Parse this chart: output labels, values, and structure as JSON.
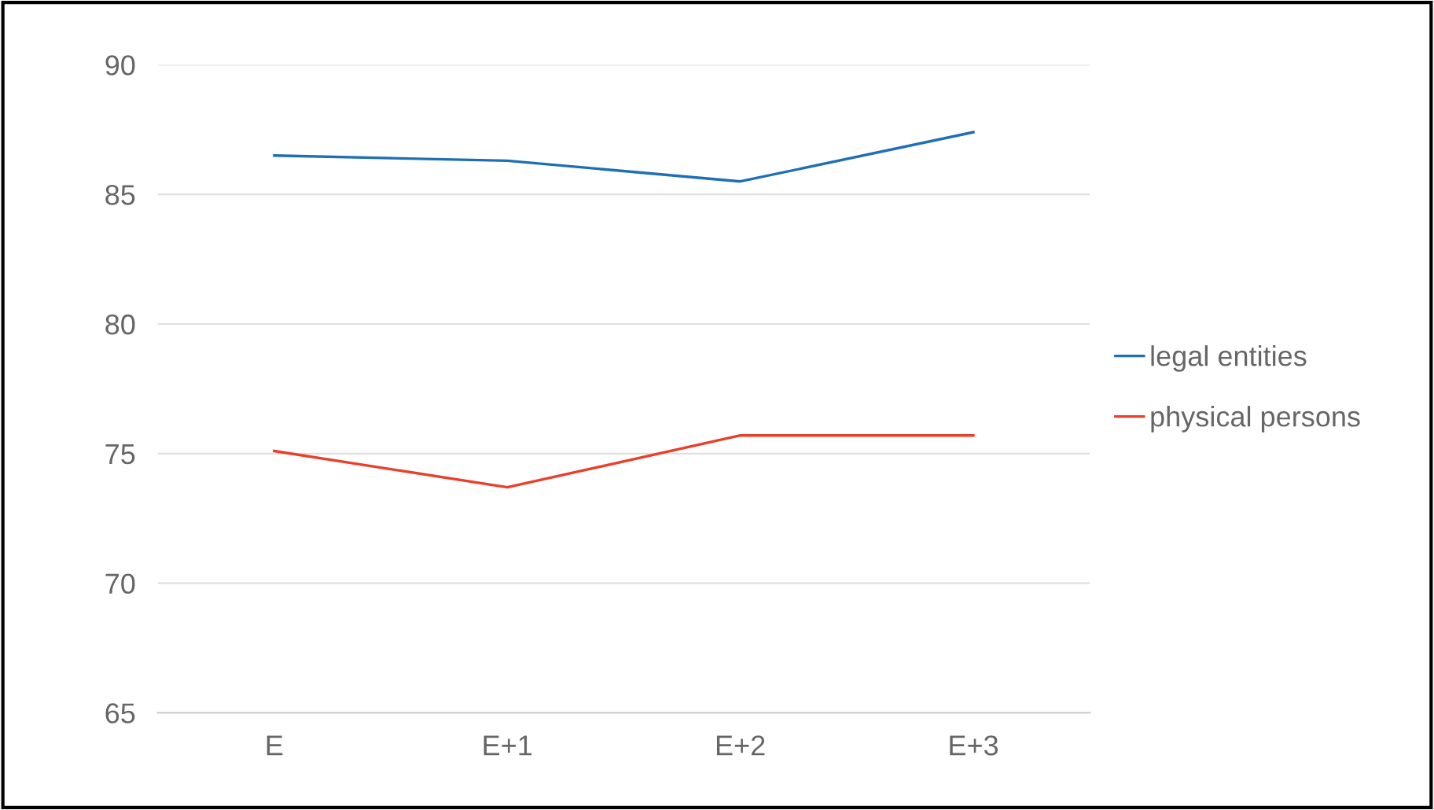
{
  "chart_data": {
    "type": "line",
    "categories": [
      "E",
      "E+1",
      "E+2",
      "E+3"
    ],
    "series": [
      {
        "name": "legal entities",
        "color": "#1f6fb5",
        "values": [
          86.5,
          86.3,
          85.5,
          87.4
        ]
      },
      {
        "name": "physical persons",
        "color": "#e8402a",
        "values": [
          75.1,
          73.7,
          75.7,
          75.7
        ]
      }
    ],
    "ylim": [
      65,
      90
    ],
    "yticks": [
      65,
      70,
      75,
      80,
      85,
      90
    ],
    "grid": "y",
    "legend": "right",
    "marker": "none",
    "line_style": "solid"
  }
}
